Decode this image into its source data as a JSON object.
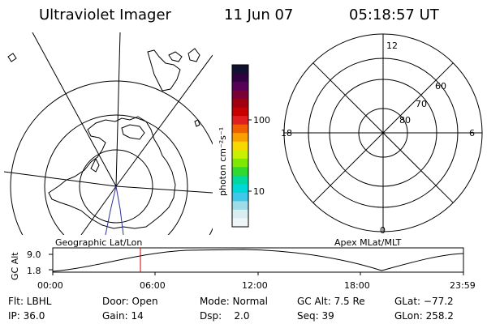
{
  "header": {
    "instrument": "Ultraviolet Imager",
    "date": "11 Jun 07",
    "time": "05:18:57 UT"
  },
  "colorbar": {
    "unit_label": "photon cm⁻²s⁻¹",
    "ticks": [
      "100",
      "10"
    ],
    "colors": [
      "#101030",
      "#300040",
      "#580058",
      "#7a0038",
      "#a00010",
      "#c80000",
      "#e02020",
      "#f06000",
      "#f8a000",
      "#f8d800",
      "#c8f000",
      "#80e800",
      "#30d830",
      "#00d8a0",
      "#00d8d8",
      "#40c8e8",
      "#a0dce8",
      "#d8eef0",
      "#f0f6f8"
    ]
  },
  "polar_plot": {
    "mlt_labels": [
      "12",
      "18",
      "6",
      "0"
    ],
    "lat_labels": [
      "60",
      "70",
      "80"
    ]
  },
  "strip": {
    "left_label": "Geographic Lat/Lon",
    "right_label": "Apex MLat/MLT",
    "ylabel": "GC Alt",
    "yticks": [
      "9.0",
      "1.8"
    ],
    "xticks": [
      "00:00",
      "06:00",
      "12:00",
      "18:00",
      "23:59"
    ],
    "marker_color": "#cc0000"
  },
  "info_rows": [
    [
      "Flt: LBHL",
      "Door: Open",
      "Mode: Normal",
      "GC Alt: 7.5 Re",
      "GLat: −77.2"
    ],
    [
      "IP: 36.0",
      "Gain: 14",
      "Dsp:    2.0",
      "Seq: 39",
      "GLon: 258.2"
    ]
  ]
}
